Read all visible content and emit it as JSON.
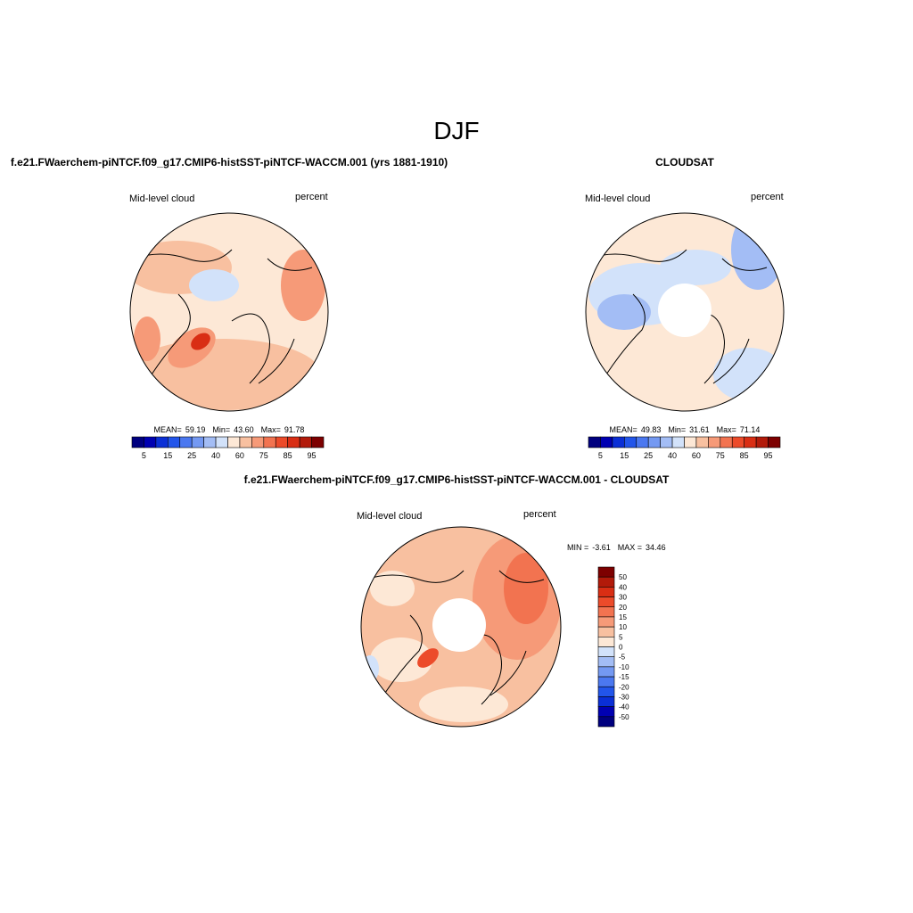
{
  "title": "DJF",
  "panels": [
    {
      "title": "f.e21.FWaerchem-piNTCF.f09_g17.CMIP6-histSST-piNTCF-WACCM.001 (yrs 1881-1910)",
      "variable": "Mid-level cloud",
      "units": "percent",
      "stats": [
        {
          "label": "MEAN=",
          "value": "59.19"
        },
        {
          "label": "Min=",
          "value": "43.60"
        },
        {
          "label": "Max=",
          "value": "91.78"
        }
      ]
    },
    {
      "title": "CLOUDSAT",
      "variable": "Mid-level cloud",
      "units": "percent",
      "stats": [
        {
          "label": "MEAN=",
          "value": "49.83"
        },
        {
          "label": "Min=",
          "value": "31.61"
        },
        {
          "label": "Max=",
          "value": "71.14"
        }
      ]
    },
    {
      "title": "f.e21.FWaerchem-piNTCF.f09_g17.CMIP6-histSST-piNTCF-WACCM.001 - CLOUDSAT",
      "variable": "Mid-level cloud",
      "units": "percent",
      "stats": [
        {
          "label": "MIN =",
          "value": "-3.61"
        },
        {
          "label": "MAX =",
          "value": "34.46"
        }
      ]
    }
  ],
  "colorbar": {
    "colors": [
      "#00007f",
      "#0000b2",
      "#0a2fd6",
      "#2255ea",
      "#4b78f0",
      "#7499f2",
      "#a3bdf5",
      "#d2e2fa",
      "#fde8d6",
      "#f8c0a0",
      "#f69a78",
      "#f27350",
      "#ec4b2a",
      "#d92e14",
      "#b21a0a",
      "#7d0000"
    ],
    "labels": [
      5,
      15,
      25,
      40,
      60,
      75,
      85,
      95
    ]
  },
  "diff_colorbar": {
    "colors": [
      "#7d0000",
      "#b21a0a",
      "#d92e14",
      "#ec4b2a",
      "#f27350",
      "#f69a78",
      "#f8c0a0",
      "#fde8d6",
      "#d2e2fa",
      "#a3bdf5",
      "#7499f2",
      "#4b78f0",
      "#2255ea",
      "#0a2fd6",
      "#0000b2",
      "#00007f"
    ],
    "labels": [
      50,
      40,
      30,
      20,
      15,
      10,
      5,
      0,
      -5,
      -10,
      -15,
      -20,
      -30,
      -40,
      -50
    ]
  }
}
